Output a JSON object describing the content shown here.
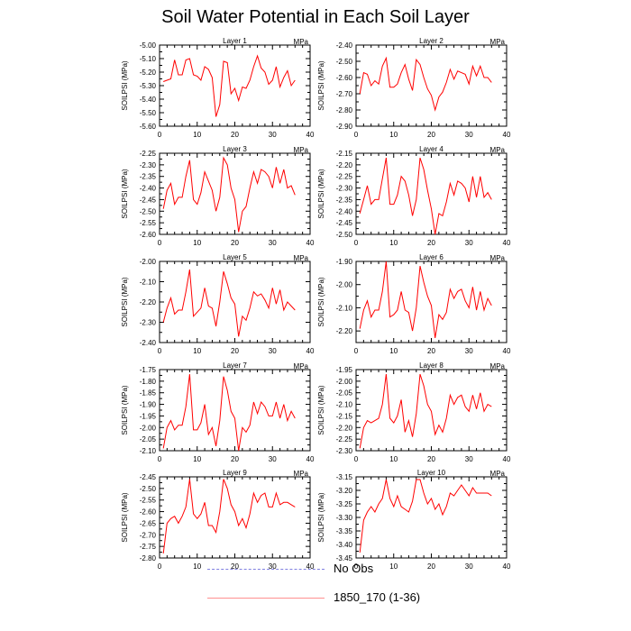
{
  "title": "Soil Water Potential in Each Soil Layer",
  "colors": {
    "line": "#ff0000",
    "obs": "#8080e0",
    "axis": "#000000"
  },
  "legend": {
    "obs_label": "No Obs",
    "model_label": "1850_170 (1-36)"
  },
  "chart_data": [
    {
      "type": "line",
      "title": "Layer 1",
      "unit": "MPa",
      "ylabel": "SOILPSI  (MPa)",
      "xlim": [
        0,
        40
      ],
      "xticks": [
        0,
        10,
        20,
        30,
        40
      ],
      "ylim": [
        -5.6,
        -5.0
      ],
      "yticks": [
        -5.0,
        -5.1,
        -5.2,
        -5.3,
        -5.4,
        -5.5,
        -5.6
      ],
      "ytick_labels": [
        "-5.00",
        "-5.10",
        "-5.20",
        "-5.30",
        "-5.40",
        "-5.50",
        "-5.60"
      ],
      "x": [
        1,
        2,
        3,
        4,
        5,
        6,
        7,
        8,
        9,
        10,
        11,
        12,
        13,
        14,
        15,
        16,
        17,
        18,
        19,
        20,
        21,
        22,
        23,
        24,
        25,
        26,
        27,
        28,
        29,
        30,
        31,
        32,
        33,
        34,
        35,
        36
      ],
      "y": [
        -5.27,
        -5.26,
        -5.25,
        -5.11,
        -5.22,
        -5.22,
        -5.11,
        -5.1,
        -5.22,
        -5.23,
        -5.26,
        -5.16,
        -5.18,
        -5.24,
        -5.53,
        -5.44,
        -5.12,
        -5.13,
        -5.36,
        -5.32,
        -5.41,
        -5.31,
        -5.32,
        -5.26,
        -5.16,
        -5.08,
        -5.17,
        -5.2,
        -5.29,
        -5.26,
        -5.16,
        -5.31,
        -5.24,
        -5.19,
        -5.3,
        -5.26
      ]
    },
    {
      "type": "line",
      "title": "Layer 2",
      "unit": "MPa",
      "ylabel": "SOILPSI  (MPa)",
      "xlim": [
        0,
        40
      ],
      "xticks": [
        0,
        10,
        20,
        30,
        40
      ],
      "ylim": [
        -2.9,
        -2.4
      ],
      "yticks": [
        -2.4,
        -2.5,
        -2.6,
        -2.7,
        -2.8,
        -2.9
      ],
      "ytick_labels": [
        "-2.40",
        "-2.50",
        "-2.60",
        "-2.70",
        "-2.80",
        "-2.90"
      ],
      "x": [
        1,
        2,
        3,
        4,
        5,
        6,
        7,
        8,
        9,
        10,
        11,
        12,
        13,
        14,
        15,
        16,
        17,
        18,
        19,
        20,
        21,
        22,
        23,
        24,
        25,
        26,
        27,
        28,
        29,
        30,
        31,
        32,
        33,
        34,
        35,
        36
      ],
      "y": [
        -2.7,
        -2.57,
        -2.58,
        -2.65,
        -2.62,
        -2.64,
        -2.53,
        -2.48,
        -2.66,
        -2.66,
        -2.64,
        -2.57,
        -2.52,
        -2.61,
        -2.68,
        -2.49,
        -2.52,
        -2.6,
        -2.67,
        -2.71,
        -2.8,
        -2.72,
        -2.69,
        -2.63,
        -2.55,
        -2.61,
        -2.56,
        -2.57,
        -2.58,
        -2.64,
        -2.53,
        -2.59,
        -2.53,
        -2.6,
        -2.6,
        -2.63
      ]
    },
    {
      "type": "line",
      "title": "Layer 3",
      "unit": "MPa",
      "ylabel": "SOILPSI  (MPa)",
      "xlim": [
        0,
        40
      ],
      "xticks": [
        0,
        10,
        20,
        30,
        40
      ],
      "ylim": [
        -2.6,
        -2.25
      ],
      "yticks": [
        -2.25,
        -2.3,
        -2.35,
        -2.4,
        -2.45,
        -2.5,
        -2.55,
        -2.6
      ],
      "ytick_labels": [
        "-2.25",
        "-2.30",
        "-2.35",
        "-2.40",
        "-2.45",
        "-2.50",
        "-2.55",
        "-2.60"
      ],
      "x": [
        1,
        2,
        3,
        4,
        5,
        6,
        7,
        8,
        9,
        10,
        11,
        12,
        13,
        14,
        15,
        16,
        17,
        18,
        19,
        20,
        21,
        22,
        23,
        24,
        25,
        26,
        27,
        28,
        29,
        30,
        31,
        32,
        33,
        34,
        35,
        36
      ],
      "y": [
        -2.49,
        -2.41,
        -2.38,
        -2.47,
        -2.44,
        -2.44,
        -2.35,
        -2.28,
        -2.45,
        -2.47,
        -2.42,
        -2.33,
        -2.37,
        -2.41,
        -2.5,
        -2.44,
        -2.27,
        -2.3,
        -2.4,
        -2.45,
        -2.59,
        -2.5,
        -2.48,
        -2.4,
        -2.33,
        -2.38,
        -2.32,
        -2.33,
        -2.35,
        -2.4,
        -2.31,
        -2.38,
        -2.32,
        -2.4,
        -2.39,
        -2.43
      ]
    },
    {
      "type": "line",
      "title": "Layer 4",
      "unit": "MPa",
      "ylabel": "SOILPSI  (MPa)",
      "xlim": [
        0,
        40
      ],
      "xticks": [
        0,
        10,
        20,
        30,
        40
      ],
      "ylim": [
        -2.5,
        -2.15
      ],
      "yticks": [
        -2.15,
        -2.2,
        -2.25,
        -2.3,
        -2.35,
        -2.4,
        -2.45,
        -2.5
      ],
      "ytick_labels": [
        "-2.15",
        "-2.20",
        "-2.25",
        "-2.30",
        "-2.35",
        "-2.40",
        "-2.45",
        "-2.50"
      ],
      "x": [
        1,
        2,
        3,
        4,
        5,
        6,
        7,
        8,
        9,
        10,
        11,
        12,
        13,
        14,
        15,
        16,
        17,
        18,
        19,
        20,
        21,
        22,
        23,
        24,
        25,
        26,
        27,
        28,
        29,
        30,
        31,
        32,
        33,
        34,
        35,
        36
      ],
      "y": [
        -2.41,
        -2.35,
        -2.29,
        -2.37,
        -2.35,
        -2.35,
        -2.26,
        -2.17,
        -2.37,
        -2.37,
        -2.33,
        -2.25,
        -2.27,
        -2.33,
        -2.42,
        -2.35,
        -2.17,
        -2.22,
        -2.31,
        -2.39,
        -2.5,
        -2.41,
        -2.42,
        -2.36,
        -2.28,
        -2.33,
        -2.27,
        -2.28,
        -2.3,
        -2.36,
        -2.25,
        -2.34,
        -2.25,
        -2.34,
        -2.32,
        -2.35
      ]
    },
    {
      "type": "line",
      "title": "Layer 5",
      "unit": "MPa",
      "ylabel": "SOILPSI  (MPa)",
      "xlim": [
        0,
        40
      ],
      "xticks": [
        0,
        10,
        20,
        30,
        40
      ],
      "ylim": [
        -2.4,
        -2.0
      ],
      "yticks": [
        -2.0,
        -2.1,
        -2.2,
        -2.3,
        -2.4
      ],
      "ytick_labels": [
        "-2.00",
        "-2.10",
        "-2.20",
        "-2.30",
        "-2.40"
      ],
      "x": [
        1,
        2,
        3,
        4,
        5,
        6,
        7,
        8,
        9,
        10,
        11,
        12,
        13,
        14,
        15,
        16,
        17,
        18,
        19,
        20,
        21,
        22,
        23,
        24,
        25,
        26,
        27,
        28,
        29,
        30,
        31,
        32,
        33,
        34,
        35,
        36
      ],
      "y": [
        -2.3,
        -2.23,
        -2.18,
        -2.26,
        -2.24,
        -2.24,
        -2.15,
        -2.04,
        -2.27,
        -2.25,
        -2.23,
        -2.13,
        -2.22,
        -2.23,
        -2.32,
        -2.2,
        -2.05,
        -2.11,
        -2.18,
        -2.21,
        -2.37,
        -2.27,
        -2.29,
        -2.23,
        -2.15,
        -2.17,
        -2.16,
        -2.19,
        -2.23,
        -2.13,
        -2.21,
        -2.14,
        -2.24,
        -2.2,
        -2.22,
        -2.24
      ]
    },
    {
      "type": "line",
      "title": "Layer 6",
      "unit": "MPa",
      "ylabel": "SOILPSI  (MPa)",
      "xlim": [
        0,
        40
      ],
      "xticks": [
        0,
        10,
        20,
        30,
        40
      ],
      "ylim": [
        -2.25,
        -1.9
      ],
      "yticks": [
        -1.9,
        -2.0,
        -2.1,
        -2.2
      ],
      "ytick_labels": [
        "-1.90",
        "-2.00",
        "-2.10",
        "-2.20"
      ],
      "x": [
        1,
        2,
        3,
        4,
        5,
        6,
        7,
        8,
        9,
        10,
        11,
        12,
        13,
        14,
        15,
        16,
        17,
        18,
        19,
        20,
        21,
        22,
        23,
        24,
        25,
        26,
        27,
        28,
        29,
        30,
        31,
        32,
        33,
        34,
        35,
        36
      ],
      "y": [
        -2.19,
        -2.11,
        -2.07,
        -2.14,
        -2.11,
        -2.11,
        -2.03,
        -1.9,
        -2.14,
        -2.13,
        -2.11,
        -2.03,
        -2.11,
        -2.12,
        -2.2,
        -2.1,
        -1.92,
        -1.99,
        -2.05,
        -2.09,
        -2.23,
        -2.13,
        -2.15,
        -2.12,
        -2.02,
        -2.06,
        -2.03,
        -2.02,
        -2.07,
        -2.1,
        -2.01,
        -2.11,
        -2.03,
        -2.11,
        -2.06,
        -2.09
      ]
    },
    {
      "type": "line",
      "title": "Layer 7",
      "unit": "MPa",
      "ylabel": "SOILPSI  (MPa)",
      "xlim": [
        0,
        40
      ],
      "xticks": [
        0,
        10,
        20,
        30,
        40
      ],
      "ylim": [
        -2.1,
        -1.75
      ],
      "yticks": [
        -1.75,
        -1.8,
        -1.85,
        -1.9,
        -1.95,
        -2.0,
        -2.05,
        -2.1
      ],
      "ytick_labels": [
        "-1.75",
        "-1.80",
        "-1.85",
        "-1.90",
        "-1.95",
        "-2.00",
        "-2.05",
        "-2.10"
      ],
      "x": [
        1,
        2,
        3,
        4,
        5,
        6,
        7,
        8,
        9,
        10,
        11,
        12,
        13,
        14,
        15,
        16,
        17,
        18,
        19,
        20,
        21,
        22,
        23,
        24,
        25,
        26,
        27,
        28,
        29,
        30,
        31,
        32,
        33,
        34,
        35,
        36
      ],
      "y": [
        -2.09,
        -2.0,
        -1.97,
        -2.01,
        -1.99,
        -1.99,
        -1.91,
        -1.77,
        -2.01,
        -2.01,
        -1.98,
        -1.9,
        -2.03,
        -2.0,
        -2.08,
        -1.97,
        -1.78,
        -1.84,
        -1.93,
        -1.96,
        -2.1,
        -2.0,
        -2.02,
        -1.99,
        -1.89,
        -1.94,
        -1.89,
        -1.91,
        -1.95,
        -1.95,
        -1.89,
        -1.96,
        -1.9,
        -1.97,
        -1.93,
        -1.96
      ]
    },
    {
      "type": "line",
      "title": "Layer 8",
      "unit": "MPa",
      "ylabel": "SOILPSI  (MPa)",
      "xlim": [
        0,
        40
      ],
      "xticks": [
        0,
        10,
        20,
        30,
        40
      ],
      "ylim": [
        -2.3,
        -1.95
      ],
      "yticks": [
        -1.95,
        -2.0,
        -2.05,
        -2.1,
        -2.15,
        -2.2,
        -2.25,
        -2.3
      ],
      "ytick_labels": [
        "-1.95",
        "-2.00",
        "-2.05",
        "-2.10",
        "-2.15",
        "-2.20",
        "-2.25",
        "-2.30"
      ],
      "x": [
        1,
        2,
        3,
        4,
        5,
        6,
        7,
        8,
        9,
        10,
        11,
        12,
        13,
        14,
        15,
        16,
        17,
        18,
        19,
        20,
        21,
        22,
        23,
        24,
        25,
        26,
        27,
        28,
        29,
        30,
        31,
        32,
        33,
        34,
        35,
        36
      ],
      "y": [
        -2.29,
        -2.2,
        -2.17,
        -2.18,
        -2.17,
        -2.16,
        -2.1,
        -1.97,
        -2.16,
        -2.18,
        -2.15,
        -2.08,
        -2.22,
        -2.17,
        -2.24,
        -2.14,
        -1.97,
        -2.02,
        -2.1,
        -2.13,
        -2.23,
        -2.19,
        -2.22,
        -2.16,
        -2.06,
        -2.1,
        -2.07,
        -2.06,
        -2.11,
        -2.13,
        -2.06,
        -2.12,
        -2.05,
        -2.13,
        -2.1,
        -2.11
      ]
    },
    {
      "type": "line",
      "title": "Layer 9",
      "unit": "MPa",
      "ylabel": "SOILPSI  (MPa)",
      "xlim": [
        0,
        40
      ],
      "xticks": [
        0,
        10,
        20,
        30,
        40
      ],
      "ylim": [
        -2.8,
        -2.45
      ],
      "yticks": [
        -2.45,
        -2.5,
        -2.55,
        -2.6,
        -2.65,
        -2.7,
        -2.75,
        -2.8
      ],
      "ytick_labels": [
        "-2.45",
        "-2.50",
        "-2.55",
        "-2.60",
        "-2.65",
        "-2.70",
        "-2.75",
        "-2.80"
      ],
      "x": [
        1,
        2,
        3,
        4,
        5,
        6,
        7,
        8,
        9,
        10,
        11,
        12,
        13,
        14,
        15,
        16,
        17,
        18,
        19,
        20,
        21,
        22,
        23,
        24,
        25,
        26,
        27,
        28,
        29,
        30,
        31,
        32,
        33,
        34,
        35,
        36
      ],
      "y": [
        -2.78,
        -2.65,
        -2.63,
        -2.62,
        -2.65,
        -2.62,
        -2.58,
        -2.46,
        -2.61,
        -2.63,
        -2.61,
        -2.56,
        -2.66,
        -2.66,
        -2.69,
        -2.6,
        -2.46,
        -2.5,
        -2.57,
        -2.6,
        -2.66,
        -2.63,
        -2.67,
        -2.61,
        -2.52,
        -2.56,
        -2.53,
        -2.52,
        -2.58,
        -2.58,
        -2.52,
        -2.57,
        -2.56,
        -2.56,
        -2.57,
        -2.58
      ]
    },
    {
      "type": "line",
      "title": "Layer 10",
      "unit": "MPa",
      "ylabel": "SOILPSI  (MPa)",
      "xlim": [
        0,
        40
      ],
      "xticks": [
        0,
        10,
        20,
        30,
        40
      ],
      "ylim": [
        -3.45,
        -3.15
      ],
      "yticks": [
        -3.15,
        -3.2,
        -3.25,
        -3.3,
        -3.35,
        -3.4,
        -3.45
      ],
      "ytick_labels": [
        "-3.15",
        "-3.20",
        "-3.25",
        "-3.30",
        "-3.35",
        "-3.40",
        "-3.45"
      ],
      "x": [
        1,
        2,
        3,
        4,
        5,
        6,
        7,
        8,
        9,
        10,
        11,
        12,
        13,
        14,
        15,
        16,
        17,
        18,
        19,
        20,
        21,
        22,
        23,
        24,
        25,
        26,
        27,
        28,
        29,
        30,
        31,
        32,
        33,
        34,
        35,
        36
      ],
      "y": [
        -3.43,
        -3.31,
        -3.28,
        -3.26,
        -3.28,
        -3.25,
        -3.23,
        -3.16,
        -3.23,
        -3.26,
        -3.22,
        -3.26,
        -3.27,
        -3.28,
        -3.24,
        -3.16,
        -3.16,
        -3.21,
        -3.25,
        -3.23,
        -3.27,
        -3.25,
        -3.29,
        -3.26,
        -3.21,
        -3.22,
        -3.2,
        -3.18,
        -3.2,
        -3.22,
        -3.19,
        -3.21,
        -3.21,
        -3.21,
        -3.21,
        -3.22
      ]
    }
  ]
}
